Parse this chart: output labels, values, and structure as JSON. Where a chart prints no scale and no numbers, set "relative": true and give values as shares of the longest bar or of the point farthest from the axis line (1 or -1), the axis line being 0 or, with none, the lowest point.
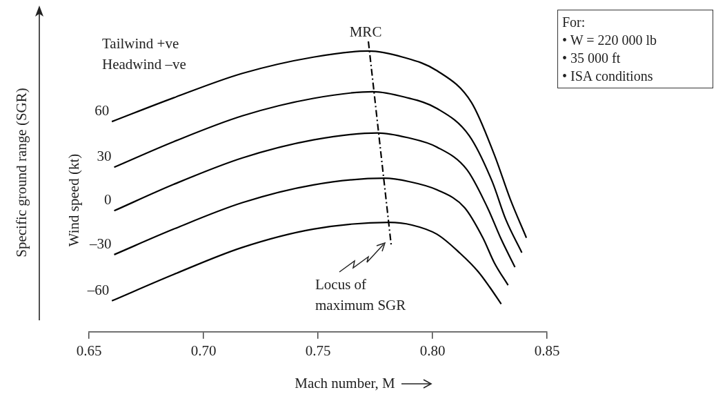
{
  "chart_data": {
    "type": "line",
    "relative": true,
    "xlabel": "Mach number, M",
    "ylabel": "Specific ground range (SGR)",
    "xlim": [
      0.65,
      0.85
    ],
    "xticks": [
      0.65,
      {
        "value": 0.7,
        "label": "0.70"
      },
      0.75,
      {
        "value": 0.8,
        "label": "0.80"
      },
      0.85
    ],
    "grid": false,
    "legend": false,
    "marker": "none",
    "line_style": "solid",
    "annotations": [
      "Tailwind +ve\nHeadwind –ve",
      "Wind speed (kt)",
      "Locus of\nmaximum SGR",
      "For:\n• W = 220 000 lb\n• 35 000 ft\n• ISA conditions"
    ],
    "series": [
      {
        "name": "60",
        "color": "#000000",
        "x": [
          0.66,
          0.687,
          0.717,
          0.748,
          0.772,
          0.787,
          0.802,
          0.817,
          0.827,
          0.834,
          0.841
        ],
        "values": [
          0.724,
          0.806,
          0.89,
          0.946,
          0.967,
          0.946,
          0.899,
          0.79,
          0.61,
          0.456,
          0.324
        ]
      },
      {
        "name": "30",
        "color": "#000000",
        "x": [
          0.661,
          0.687,
          0.717,
          0.748,
          0.774,
          0.788,
          0.802,
          0.816,
          0.826,
          0.832,
          0.839
        ],
        "values": [
          0.567,
          0.655,
          0.744,
          0.804,
          0.827,
          0.808,
          0.769,
          0.676,
          0.519,
          0.387,
          0.273
        ]
      },
      {
        "name": "0",
        "color": "#000000",
        "x": [
          0.661,
          0.687,
          0.717,
          0.748,
          0.776,
          0.789,
          0.802,
          0.815,
          0.824,
          0.83,
          0.836
        ],
        "values": [
          0.417,
          0.508,
          0.599,
          0.661,
          0.685,
          0.669,
          0.636,
          0.559,
          0.428,
          0.319,
          0.223
        ]
      },
      {
        "name": "–30",
        "color": "#000000",
        "x": [
          0.661,
          0.687,
          0.717,
          0.748,
          0.779,
          0.79,
          0.802,
          0.814,
          0.822,
          0.827,
          0.833
        ],
        "values": [
          0.266,
          0.354,
          0.445,
          0.506,
          0.529,
          0.517,
          0.489,
          0.428,
          0.324,
          0.238,
          0.161
        ]
      },
      {
        "name": "–60",
        "color": "#000000",
        "x": [
          0.66,
          0.687,
          0.717,
          0.748,
          0.781,
          0.791,
          0.802,
          0.812,
          0.82,
          0.825,
          0.83
        ],
        "values": [
          0.107,
          0.198,
          0.291,
          0.354,
          0.377,
          0.368,
          0.336,
          0.271,
          0.207,
          0.154,
          0.096
        ]
      },
      {
        "name": "MRC",
        "color": "#000000",
        "line_style": "dashed",
        "x": [
          0.772,
          0.782
        ],
        "values": [
          1,
          0.296
        ]
      }
    ]
  }
}
